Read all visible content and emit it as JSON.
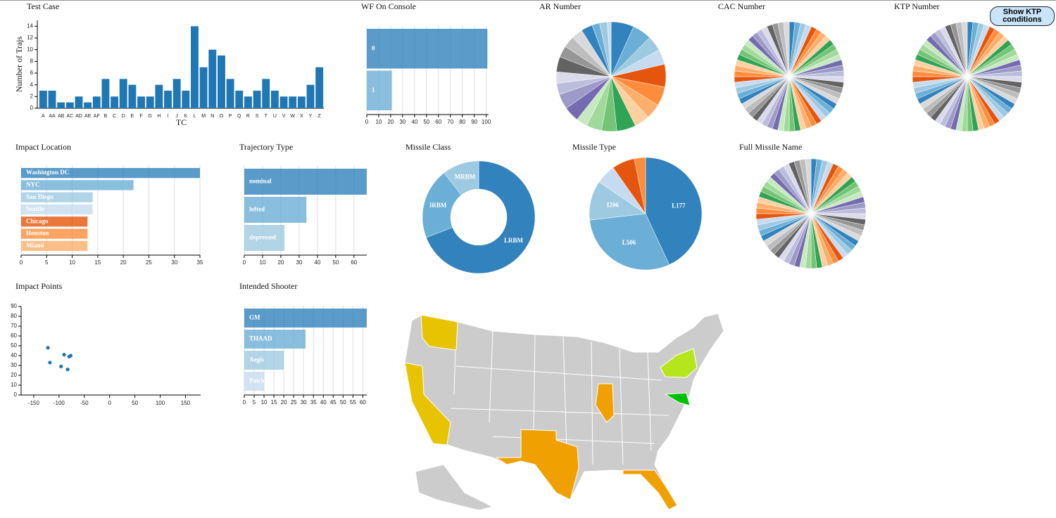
{
  "button": {
    "label": "Show KTP conditions"
  },
  "palette": [
    "#3182bd",
    "#6baed6",
    "#9ecae1",
    "#c6dbef",
    "#e6550d",
    "#fd8d3c",
    "#fdae6b",
    "#fdd0a2",
    "#31a354",
    "#74c476",
    "#a1d99b",
    "#c7e9c0",
    "#756bb1",
    "#9e9ac8",
    "#bcbddc",
    "#dadaeb",
    "#636363",
    "#969696",
    "#bdbdbd",
    "#d9d9d9"
  ],
  "chart_data": [
    {
      "type": "bar",
      "title": "Test Case",
      "xlabel": "TC",
      "ylabel": "Number of Trajs",
      "color": "#1f77b4",
      "categories": [
        "A",
        "AA",
        "AB",
        "AC",
        "AD",
        "AE",
        "AF",
        "B",
        "C",
        "D",
        "E",
        "F",
        "G",
        "H",
        "I",
        "J",
        "K",
        "L",
        "M",
        "N",
        "O",
        "P",
        "Q",
        "R",
        "S",
        "T",
        "U",
        "V",
        "W",
        "X",
        "Y",
        "Z"
      ],
      "values": [
        3,
        3,
        1,
        1,
        2,
        1,
        2,
        5,
        2,
        5,
        4,
        2,
        2,
        4,
        3,
        5,
        3,
        14,
        7,
        10,
        9,
        5,
        3,
        2,
        3,
        5,
        3,
        2,
        2,
        2,
        4,
        7
      ],
      "ylim": [
        0,
        15
      ],
      "yticks": [
        0,
        2,
        4,
        6,
        8,
        10,
        12,
        14
      ]
    },
    {
      "type": "barh",
      "title": "WF On Console",
      "categories": [
        "0",
        "1"
      ],
      "values": [
        101,
        21
      ],
      "colors": [
        "#3182bd",
        "#6baed6"
      ],
      "xlim": [
        0,
        102
      ],
      "xticks": [
        0,
        10,
        20,
        30,
        40,
        50,
        60,
        70,
        80,
        90,
        100
      ],
      "grid": true
    },
    {
      "type": "pie",
      "title": "AR Number",
      "values": [
        6,
        5,
        4,
        4,
        6,
        5,
        4,
        4,
        5,
        4,
        4,
        3,
        4,
        4,
        3,
        3,
        4,
        3,
        3,
        3,
        3,
        2,
        2,
        1
      ]
    },
    {
      "type": "pie",
      "title": "CAC Number",
      "values": [
        1,
        1,
        1,
        1,
        1,
        1,
        1,
        1,
        1,
        1,
        1,
        1,
        1,
        1,
        1,
        1,
        1,
        1,
        1,
        1,
        1,
        1,
        1,
        1,
        1,
        1,
        1,
        1,
        1,
        1,
        1,
        1,
        1,
        1,
        1,
        1,
        1,
        1,
        1,
        1,
        1,
        1,
        1,
        1,
        1,
        1,
        1,
        1,
        1,
        1,
        1,
        1,
        1,
        1,
        1,
        1,
        1,
        1,
        1,
        1
      ]
    },
    {
      "type": "pie",
      "title": "KTP Number",
      "values": [
        1,
        1,
        1,
        1,
        1,
        1,
        1,
        1,
        1,
        1,
        1,
        1,
        1,
        1,
        1,
        1,
        1,
        1,
        1,
        1,
        1,
        1,
        1,
        1,
        1,
        1,
        1,
        1,
        1,
        1,
        1,
        1,
        1,
        1,
        1,
        1,
        1,
        1,
        1,
        1,
        1,
        1,
        1,
        1,
        1,
        1,
        1,
        1,
        1,
        1,
        1,
        1,
        1,
        1,
        1,
        1,
        1,
        1,
        1,
        1
      ]
    },
    {
      "type": "barh",
      "title": "Impact Location",
      "categories": [
        "Washington DC",
        "NYC",
        "San Diego",
        "Seattle",
        "Chicago",
        "Houston",
        "Miami"
      ],
      "values": [
        35,
        22,
        14,
        14,
        13,
        13,
        13
      ],
      "colors": [
        "#3182bd",
        "#6baed6",
        "#9ecae1",
        "#c6dbef",
        "#e6550d",
        "#fd8d3c",
        "#fdae6b"
      ],
      "xlim": [
        0,
        35
      ],
      "xticks": [
        0,
        5,
        10,
        15,
        20,
        25,
        30,
        35
      ],
      "grid": true
    },
    {
      "type": "barh",
      "title": "Trajectory Type",
      "categories": [
        "nominal",
        "lofted",
        "depressed"
      ],
      "values": [
        67,
        34,
        22
      ],
      "colors": [
        "#3182bd",
        "#6baed6",
        "#9ecae1"
      ],
      "xlim": [
        0,
        67
      ],
      "xticks": [
        0,
        10,
        20,
        30,
        40,
        50,
        60
      ],
      "grid": true
    },
    {
      "type": "donut",
      "title": "Missile Class",
      "categories": [
        "LRBM",
        "IRBM",
        "MRBM"
      ],
      "values": [
        85,
        25,
        13
      ]
    },
    {
      "type": "pie",
      "title": "Missile Type",
      "categories": [
        "L177",
        "L506",
        "I206",
        null,
        null,
        null
      ],
      "values": [
        53,
        37,
        14,
        7,
        8,
        4
      ]
    },
    {
      "type": "pie",
      "title": "Full Missile Name",
      "values": [
        1,
        1,
        1,
        1,
        1,
        1,
        1,
        1,
        1,
        1,
        1,
        1,
        1,
        1,
        1,
        1,
        1,
        1,
        1,
        1,
        1,
        1,
        1,
        1,
        1,
        1,
        1,
        1,
        1,
        1,
        1,
        1,
        1,
        1,
        1,
        1,
        1,
        1,
        1,
        1,
        1,
        1,
        1,
        1,
        1,
        1,
        1,
        1,
        1,
        1,
        1,
        1,
        1,
        1,
        1,
        1,
        1,
        1,
        1,
        1
      ]
    },
    {
      "type": "scatter",
      "title": "Impact Points",
      "color": "#1f77b4",
      "x": [
        -122,
        -118,
        -96,
        -90,
        -83,
        -80,
        -77
      ],
      "values": [
        48,
        33,
        29,
        41,
        26,
        39,
        40
      ],
      "xlim": [
        -175,
        180
      ],
      "ylim": [
        0,
        90
      ],
      "xticks": [
        -150,
        -100,
        -50,
        0,
        50,
        100,
        150
      ],
      "yticks": [
        0,
        10,
        20,
        30,
        40,
        50,
        60,
        70,
        80,
        90
      ]
    },
    {
      "type": "barh",
      "title": "Intended Shooter",
      "categories": [
        "GM",
        "THAAD",
        "Aegis",
        "Patriot"
      ],
      "values": [
        62,
        31,
        20,
        10
      ],
      "colors": [
        "#3182bd",
        "#6baed6",
        "#9ecae1",
        "#c6dbef"
      ],
      "xlim": [
        0,
        62
      ],
      "xticks": [
        0,
        5,
        10,
        15,
        20,
        25,
        30,
        35,
        40,
        45,
        50,
        55,
        60
      ],
      "grid": true
    }
  ]
}
